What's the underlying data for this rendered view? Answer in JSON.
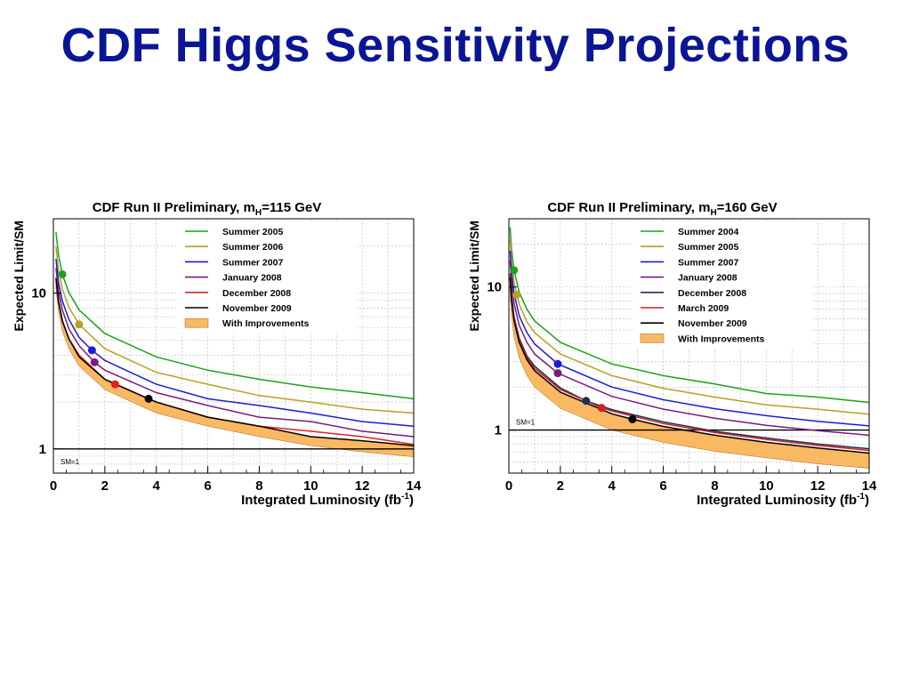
{
  "slide": {
    "title": "CDF Higgs Sensitivity Projections"
  },
  "chart_data": [
    {
      "type": "line",
      "title": "CDF Run II Preliminary, m",
      "title_sub": "H",
      "title_tail": "=115 GeV",
      "xlabel": "Integrated Luminosity (fb",
      "xlabel_sup": "-1",
      "xlabel_tail": ")",
      "ylabel": "Expected Limit/SM",
      "xlim": [
        0,
        14
      ],
      "ylim": [
        0.7,
        30
      ],
      "yscale": "log",
      "grid": true,
      "legend_position": "top-right",
      "xticks": [
        "0",
        "2",
        "4",
        "6",
        "8",
        "10",
        "12",
        "14"
      ],
      "yticks": [
        {
          "value": 1,
          "label": "1"
        },
        {
          "value": 10,
          "label": "10"
        }
      ],
      "reference_line": {
        "y": 1,
        "label": "SM=1"
      },
      "series": [
        {
          "name": "Summer 2005",
          "color": "#1aa31a",
          "x": [
            0.1,
            0.2,
            0.35,
            0.6,
            1,
            2,
            4,
            6,
            8,
            10,
            12,
            14
          ],
          "y": [
            24.7,
            17.5,
            13.2,
            10.1,
            7.8,
            5.5,
            3.9,
            3.2,
            2.8,
            2.5,
            2.3,
            2.1
          ],
          "marker": {
            "x": 0.35,
            "y": 13.2
          }
        },
        {
          "name": "Summer 2006",
          "color": "#b8a022",
          "x": [
            0.1,
            0.2,
            0.35,
            0.6,
            1,
            2,
            4,
            6,
            8,
            10,
            12,
            14
          ],
          "y": [
            19.9,
            14.0,
            10.6,
            8.1,
            6.3,
            4.4,
            3.1,
            2.6,
            2.2,
            2.0,
            1.8,
            1.7
          ],
          "marker": {
            "x": 1.0,
            "y": 6.3
          }
        },
        {
          "name": "Summer 2007",
          "color": "#1c1cd6",
          "x": [
            0.1,
            0.2,
            0.35,
            0.6,
            1,
            1.5,
            2,
            4,
            6,
            8,
            10,
            12,
            14
          ],
          "y": [
            16.6,
            11.7,
            8.9,
            6.8,
            5.2,
            4.3,
            3.7,
            2.6,
            2.1,
            1.9,
            1.7,
            1.5,
            1.4
          ],
          "marker": {
            "x": 1.5,
            "y": 4.3
          }
        },
        {
          "name": "January 2008",
          "color": "#7a1a80",
          "x": [
            0.1,
            0.2,
            0.35,
            0.6,
            1,
            1.6,
            2,
            4,
            6,
            8,
            10,
            12,
            14
          ],
          "y": [
            14.5,
            10.3,
            7.8,
            5.9,
            4.6,
            3.6,
            3.2,
            2.3,
            1.9,
            1.6,
            1.5,
            1.3,
            1.2
          ],
          "marker": {
            "x": 1.6,
            "y": 3.6
          }
        },
        {
          "name": "December 2008",
          "color": "#e02020",
          "x": [
            0.1,
            0.2,
            0.35,
            0.6,
            1,
            2,
            2.4,
            4,
            6,
            8,
            10,
            12,
            14
          ],
          "y": [
            12.6,
            8.9,
            6.7,
            5.1,
            4.0,
            2.8,
            2.6,
            2.0,
            1.6,
            1.4,
            1.3,
            1.2,
            1.07
          ],
          "marker": {
            "x": 2.4,
            "y": 2.6
          }
        },
        {
          "name": "November 2009",
          "color": "#000000",
          "x": [
            0.1,
            0.2,
            0.35,
            0.6,
            1,
            2,
            3.7,
            4,
            6,
            8,
            10,
            12,
            14
          ],
          "y": [
            12.4,
            8.8,
            6.6,
            5.1,
            3.9,
            2.8,
            2.1,
            2.0,
            1.6,
            1.4,
            1.2,
            1.13,
            1.05
          ],
          "marker": {
            "x": 3.7,
            "y": 2.1
          }
        }
      ],
      "band": {
        "name": "With Improvements",
        "color": "#f9b862",
        "x": [
          0.1,
          0.2,
          0.35,
          0.6,
          1,
          2,
          4,
          6,
          8,
          10,
          12,
          14
        ],
        "upper": [
          12.4,
          8.8,
          6.6,
          5.1,
          3.9,
          2.8,
          2.0,
          1.6,
          1.4,
          1.2,
          1.13,
          1.05
        ],
        "lower": [
          10.7,
          7.6,
          5.7,
          4.4,
          3.4,
          2.4,
          1.7,
          1.4,
          1.2,
          1.05,
          0.96,
          0.89
        ]
      }
    },
    {
      "type": "line",
      "title": "CDF Run II Preliminary, m",
      "title_sub": "H",
      "title_tail": "=160 GeV",
      "xlabel": "Integrated Luminosity (fb",
      "xlabel_sup": "-1",
      "xlabel_tail": ")",
      "ylabel": "Expected Limit/SM",
      "xlim": [
        0,
        14
      ],
      "ylim": [
        0.5,
        30
      ],
      "yscale": "log",
      "grid": true,
      "legend_position": "top-right",
      "xticks": [
        "0",
        "2",
        "4",
        "6",
        "8",
        "10",
        "12",
        "14"
      ],
      "yticks": [
        {
          "value": 1,
          "label": "1"
        },
        {
          "value": 10,
          "label": "10"
        }
      ],
      "reference_line": {
        "y": 1,
        "label": "SM=1"
      },
      "series": [
        {
          "name": "Summer 2004",
          "color": "#1aa31a",
          "x": [
            0.05,
            0.1,
            0.2,
            0.4,
            0.7,
            1,
            2,
            4,
            6,
            8,
            10,
            12,
            14
          ],
          "y": [
            26.1,
            18.5,
            13.1,
            9.2,
            7.0,
            5.8,
            4.1,
            2.9,
            2.4,
            2.1,
            1.8,
            1.7,
            1.56
          ],
          "marker": {
            "x": 0.2,
            "y": 13.1
          }
        },
        {
          "name": "Summer 2005",
          "color": "#b8a022",
          "x": [
            0.05,
            0.1,
            0.2,
            0.4,
            0.7,
            1,
            2,
            4,
            6,
            8,
            10,
            12,
            14
          ],
          "y": [
            21.5,
            15.2,
            10.7,
            7.6,
            5.7,
            4.8,
            3.4,
            2.4,
            1.96,
            1.7,
            1.5,
            1.4,
            1.29
          ],
          "marker": {
            "x": 0.3,
            "y": 8.8
          }
        },
        {
          "name": "Summer 2007",
          "color": "#1c1cd6",
          "x": [
            0.05,
            0.1,
            0.2,
            0.4,
            0.7,
            1,
            1.9,
            4,
            6,
            8,
            10,
            12,
            14
          ],
          "y": [
            17.9,
            12.7,
            9.0,
            6.3,
            4.8,
            4.0,
            2.9,
            2.0,
            1.63,
            1.41,
            1.26,
            1.15,
            1.07
          ],
          "marker": {
            "x": 1.9,
            "y": 2.9
          }
        },
        {
          "name": "January 2008",
          "color": "#7a1a80",
          "x": [
            0.05,
            0.1,
            0.2,
            0.4,
            0.7,
            1,
            1.9,
            4,
            6,
            8,
            10,
            12,
            14
          ],
          "y": [
            15.3,
            10.8,
            7.7,
            5.4,
            4.1,
            3.4,
            2.5,
            1.72,
            1.4,
            1.21,
            1.08,
            0.99,
            0.92
          ],
          "marker": {
            "x": 1.9,
            "y": 2.5
          }
        },
        {
          "name": "December 2008",
          "color": "#1e3050",
          "x": [
            0.05,
            0.1,
            0.2,
            0.4,
            0.7,
            1,
            2,
            3,
            4,
            6,
            8,
            10,
            12,
            14
          ],
          "y": [
            12.4,
            8.8,
            6.2,
            4.4,
            3.3,
            2.8,
            1.97,
            1.6,
            1.39,
            1.14,
            0.98,
            0.88,
            0.8,
            0.74
          ],
          "marker": {
            "x": 3.0,
            "y": 1.6
          }
        },
        {
          "name": "March 2009",
          "color": "#d02020",
          "x": [
            0.05,
            0.1,
            0.2,
            0.4,
            0.7,
            1,
            2,
            3.6,
            4,
            6,
            8,
            10,
            12,
            14
          ],
          "y": [
            12.1,
            8.6,
            6.1,
            4.3,
            3.2,
            2.7,
            1.92,
            1.43,
            1.36,
            1.11,
            0.96,
            0.86,
            0.78,
            0.72
          ],
          "marker": {
            "x": 3.6,
            "y": 1.43
          }
        },
        {
          "name": "November 2009",
          "color": "#000000",
          "x": [
            0.05,
            0.1,
            0.2,
            0.4,
            0.7,
            1,
            2,
            4,
            4.8,
            6,
            8,
            10,
            12,
            14
          ],
          "y": [
            11.6,
            8.2,
            5.8,
            4.1,
            3.1,
            2.6,
            1.84,
            1.3,
            1.19,
            1.06,
            0.92,
            0.82,
            0.75,
            0.69
          ],
          "marker": {
            "x": 4.8,
            "y": 1.19
          }
        }
      ],
      "band": {
        "name": "With Improvements",
        "color": "#f9b862",
        "x": [
          0.05,
          0.1,
          0.2,
          0.4,
          0.7,
          1,
          2,
          4,
          6,
          8,
          10,
          12,
          14
        ],
        "upper": [
          11.6,
          8.2,
          5.8,
          4.1,
          3.1,
          2.6,
          1.84,
          1.3,
          1.06,
          0.92,
          0.82,
          0.75,
          0.69
        ],
        "lower": [
          9.0,
          6.4,
          4.5,
          3.2,
          2.4,
          2.0,
          1.42,
          1.0,
          0.82,
          0.71,
          0.64,
          0.58,
          0.54
        ]
      }
    }
  ]
}
